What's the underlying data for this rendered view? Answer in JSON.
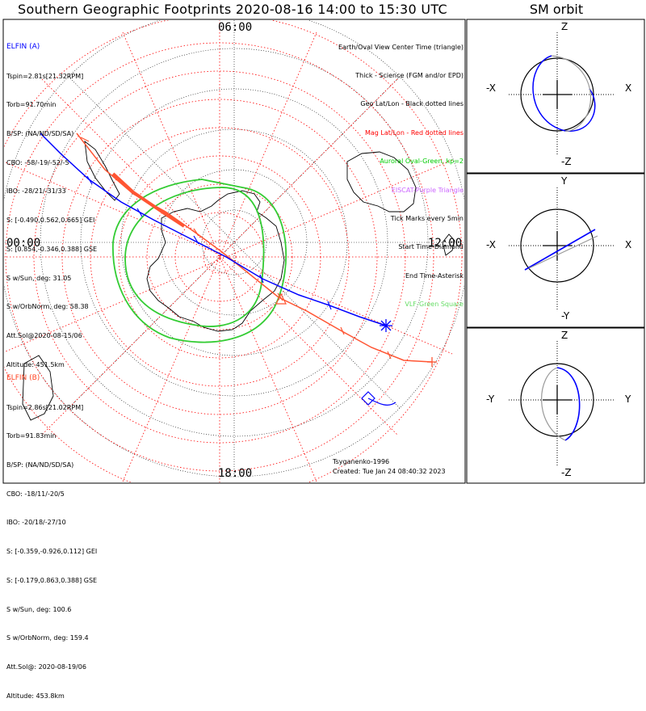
{
  "header": {
    "title": "Southern Geographic Footprints 2020-08-16 14:00 to 15:30 UTC",
    "orbit_title": "SM orbit"
  },
  "clock_labels": {
    "top": "06:00",
    "left": "00:00",
    "right": "12:00",
    "bottom": "18:00"
  },
  "sat_a": {
    "name": "ELFIN (A)",
    "color": "#0000ff",
    "lines": [
      "Tspin=2.81s[21.32RPM]",
      "Torb=91.70min",
      "B/SP: (NA/ND/SD/SA)",
      "CBO: -58/-19/-52/-5",
      "IBO: -28/21/-31/33",
      "S: [-0.490,0.562,0.665] GEI",
      "S: [0.854,-0.346,0.388] GSE",
      "S w/Sun, deg: 31.05",
      "S w/OrbNorm, deg: 58.38",
      "Att.Sol@2020-08-15/06",
      "Altitude: 451.5km"
    ]
  },
  "sat_b": {
    "name": "ELFIN (B)",
    "color": "#ff4422",
    "lines": [
      "Tspin=2.86s[21.02RPM]",
      "Torb=91.83min",
      "B/SP: (NA/ND/SD/SA)",
      "CBO: -18/11/-20/5",
      "IBO: -20/18/-27/10",
      "S: [-0.359,-0.926,0.112] GEI",
      "S: [-0.179,0.863,0.388] GSE",
      "S w/Sun, deg: 100.6",
      "S w/OrbNorm, deg: 159.4",
      "Att.Sol@: 2020-08-19/06",
      "Altitude: 453.8km"
    ]
  },
  "legend": [
    {
      "text": "Earth/Oval View Center Time (triangle)",
      "color": "#000000"
    },
    {
      "text": "Thick - Science (FGM and/or EPD)",
      "color": "#000000"
    },
    {
      "text": "Geo Lat/Lon - Black dotted lines",
      "color": "#000000"
    },
    {
      "text": "Mag Lat/Lon - Red dotted lines",
      "color": "#ff0000"
    },
    {
      "text": "Auroral Oval-Green, kp=2",
      "color": "#00cc00"
    },
    {
      "text": "EISCAT-Purple Triangle",
      "color": "#cc66ff"
    },
    {
      "text": "Tick Marks every 5min",
      "color": "#000000"
    },
    {
      "text": "Start Time-Diamond",
      "color": "#000000"
    },
    {
      "text": "End Time-Asterisk",
      "color": "#000000"
    },
    {
      "text": "VLF-Green Square",
      "color": "#66dd66"
    }
  ],
  "footer": {
    "model": "Tsyganenko-1996",
    "created": "Created: Tue Jan 24 08:40:32 2023"
  },
  "orbit_panels": [
    {
      "top": "Z",
      "bottom": "-Z",
      "left": "-X",
      "right": "X"
    },
    {
      "top": "Y",
      "bottom": "-Y",
      "left": "-X",
      "right": "X"
    },
    {
      "top": "Z",
      "bottom": "-Z",
      "left": "-Y",
      "right": "Y"
    }
  ],
  "colors": {
    "mag_grid": "#ff0000",
    "oval": "#33cc33",
    "track_a": "#0000ff",
    "track_b": "#ff4422"
  }
}
